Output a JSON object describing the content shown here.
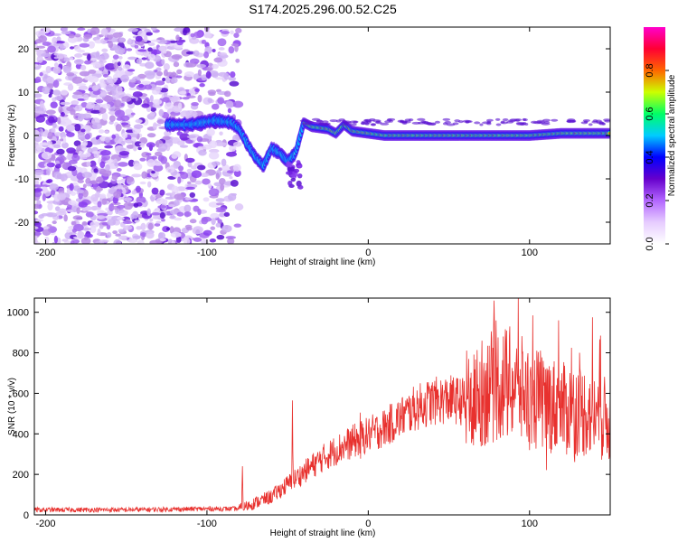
{
  "title": "S174.2025.296.00.52.C25",
  "chart_data": [
    {
      "type": "heatmap",
      "xlabel": "Height of straight line (km)",
      "ylabel": "Frequency (Hz)",
      "xlim": [
        -207,
        150
      ],
      "ylim": [
        -25,
        25
      ],
      "xticks": [
        -200,
        -100,
        0,
        100
      ],
      "xtick_labels": [
        "-200",
        "-100",
        "0",
        "100"
      ],
      "yticks": [
        -20,
        -10,
        0,
        10,
        20
      ],
      "ytick_labels": [
        "-20",
        "-10",
        "0",
        "10",
        "20"
      ],
      "colorbar": {
        "label": "Normalized spectral amplitude",
        "range": [
          0,
          1
        ],
        "ticks": [
          0.0,
          0.2,
          0.4,
          0.6,
          0.8
        ],
        "tick_labels": [
          "0.0",
          "0.2",
          "0.4",
          "0.6",
          "0.8"
        ],
        "colors": [
          "#ffffff",
          "#e6ccff",
          "#b366ff",
          "#6600cc",
          "#0000ff",
          "#00ccff",
          "#00ff66",
          "#ccff00",
          "#ff6600",
          "#ff0033",
          "#ff00cc"
        ]
      },
      "ridge": [
        [
          -125,
          2.5
        ],
        [
          -110,
          2.5
        ],
        [
          -95,
          3.5
        ],
        [
          -85,
          3
        ],
        [
          -80,
          1.5
        ],
        [
          -75,
          -2
        ],
        [
          -70,
          -5
        ],
        [
          -65,
          -7
        ],
        [
          -60,
          -3
        ],
        [
          -55,
          -4
        ],
        [
          -50,
          -6
        ],
        [
          -45,
          -4
        ],
        [
          -40,
          3
        ],
        [
          -35,
          2
        ],
        [
          -25,
          1.5
        ],
        [
          -20,
          0.5
        ],
        [
          -15,
          2.5
        ],
        [
          -10,
          1
        ],
        [
          0,
          0.5
        ],
        [
          10,
          0
        ],
        [
          30,
          0
        ],
        [
          60,
          0
        ],
        [
          80,
          0
        ],
        [
          100,
          0
        ],
        [
          120,
          0.5
        ],
        [
          150,
          0.5
        ]
      ]
    },
    {
      "type": "line",
      "xlabel": "Height of straight line (km)",
      "ylabel": "SNR (10 * v/v)",
      "xlim": [
        -207,
        150
      ],
      "ylim": [
        0,
        1070
      ],
      "xticks": [
        -200,
        -100,
        0,
        100
      ],
      "xtick_labels": [
        "-200",
        "-100",
        "0",
        "100"
      ],
      "yticks": [
        0,
        200,
        400,
        600,
        800,
        1000
      ],
      "ytick_labels": [
        "0",
        "200",
        "400",
        "600",
        "800",
        "1000"
      ],
      "line_color": "#e8312e",
      "trend": {
        "x": [
          -207,
          -150,
          -100,
          -80,
          -75,
          -60,
          -50,
          -40,
          -30,
          -20,
          -10,
          0,
          10,
          20,
          30,
          40,
          50,
          60,
          70,
          80,
          90,
          100,
          110,
          120,
          130,
          140,
          150
        ],
        "y": [
          25,
          25,
          30,
          30,
          45,
          90,
          150,
          210,
          270,
          320,
          360,
          395,
          430,
          480,
          530,
          560,
          570,
          560,
          600,
          650,
          640,
          580,
          560,
          520,
          520,
          500,
          460
        ]
      },
      "spikes": [
        {
          "x": -78,
          "y": 240
        },
        {
          "x": -47,
          "y": 565
        },
        {
          "x": -5,
          "y": 505
        },
        {
          "x": 65,
          "y": 625
        },
        {
          "x": 75,
          "y": 835
        },
        {
          "x": 93,
          "y": 1075
        },
        {
          "x": 102,
          "y": 985
        },
        {
          "x": 118,
          "y": 960
        },
        {
          "x": 126,
          "y": 825
        },
        {
          "x": 139,
          "y": 975
        },
        {
          "x": 144,
          "y": 885
        }
      ]
    }
  ]
}
